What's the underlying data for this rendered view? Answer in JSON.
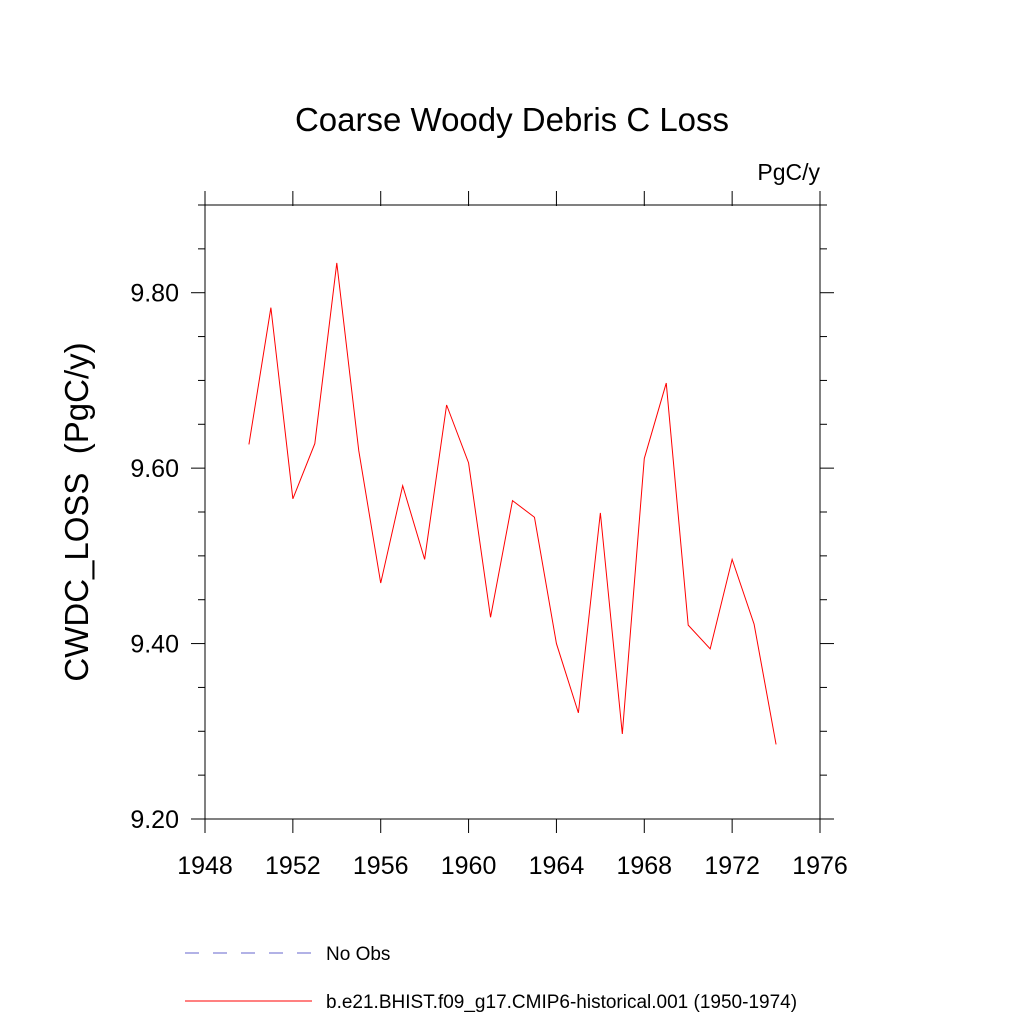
{
  "chart_data": {
    "type": "line",
    "title": "Coarse Woody Debris C Loss",
    "units_label": "PgC/y",
    "ylabel": "CWDC_LOSS  (PgC/y)",
    "xlabel": "",
    "xlim": [
      1948,
      1976
    ],
    "ylim": [
      9.2,
      9.9
    ],
    "x_ticks": [
      1948,
      1952,
      1956,
      1960,
      1964,
      1968,
      1972,
      1976
    ],
    "y_ticks": [
      9.2,
      9.4,
      9.6,
      9.8
    ],
    "x_tick_labels": [
      "1948",
      "1952",
      "1956",
      "1960",
      "1964",
      "1968",
      "1972",
      "1976"
    ],
    "y_tick_labels": [
      "9.20",
      "9.40",
      "9.60",
      "9.80"
    ],
    "grid": false,
    "legend_position": "bottom",
    "series": [
      {
        "name": "b.e21.BHIST.f09_g17.CMIP6-historical.001 (1950-1974)",
        "color": "#ff0000",
        "style": "solid",
        "x": [
          1950,
          1951,
          1952,
          1953,
          1954,
          1955,
          1956,
          1957,
          1958,
          1959,
          1960,
          1961,
          1962,
          1963,
          1964,
          1965,
          1966,
          1967,
          1968,
          1969,
          1970,
          1971,
          1972,
          1973,
          1974
        ],
        "values": [
          9.627,
          9.783,
          9.565,
          9.628,
          9.834,
          9.62,
          9.469,
          9.58,
          9.496,
          9.672,
          9.606,
          9.43,
          9.563,
          9.544,
          9.4,
          9.321,
          9.549,
          9.297,
          9.611,
          9.697,
          9.421,
          9.394,
          9.496,
          9.422,
          9.285
        ]
      }
    ],
    "legend": [
      {
        "label": "No Obs",
        "color": "#6666cc",
        "style": "dashed"
      },
      {
        "label": "b.e21.BHIST.f09_g17.CMIP6-historical.001 (1950-1974)",
        "color": "#ff0000",
        "style": "solid"
      }
    ]
  }
}
